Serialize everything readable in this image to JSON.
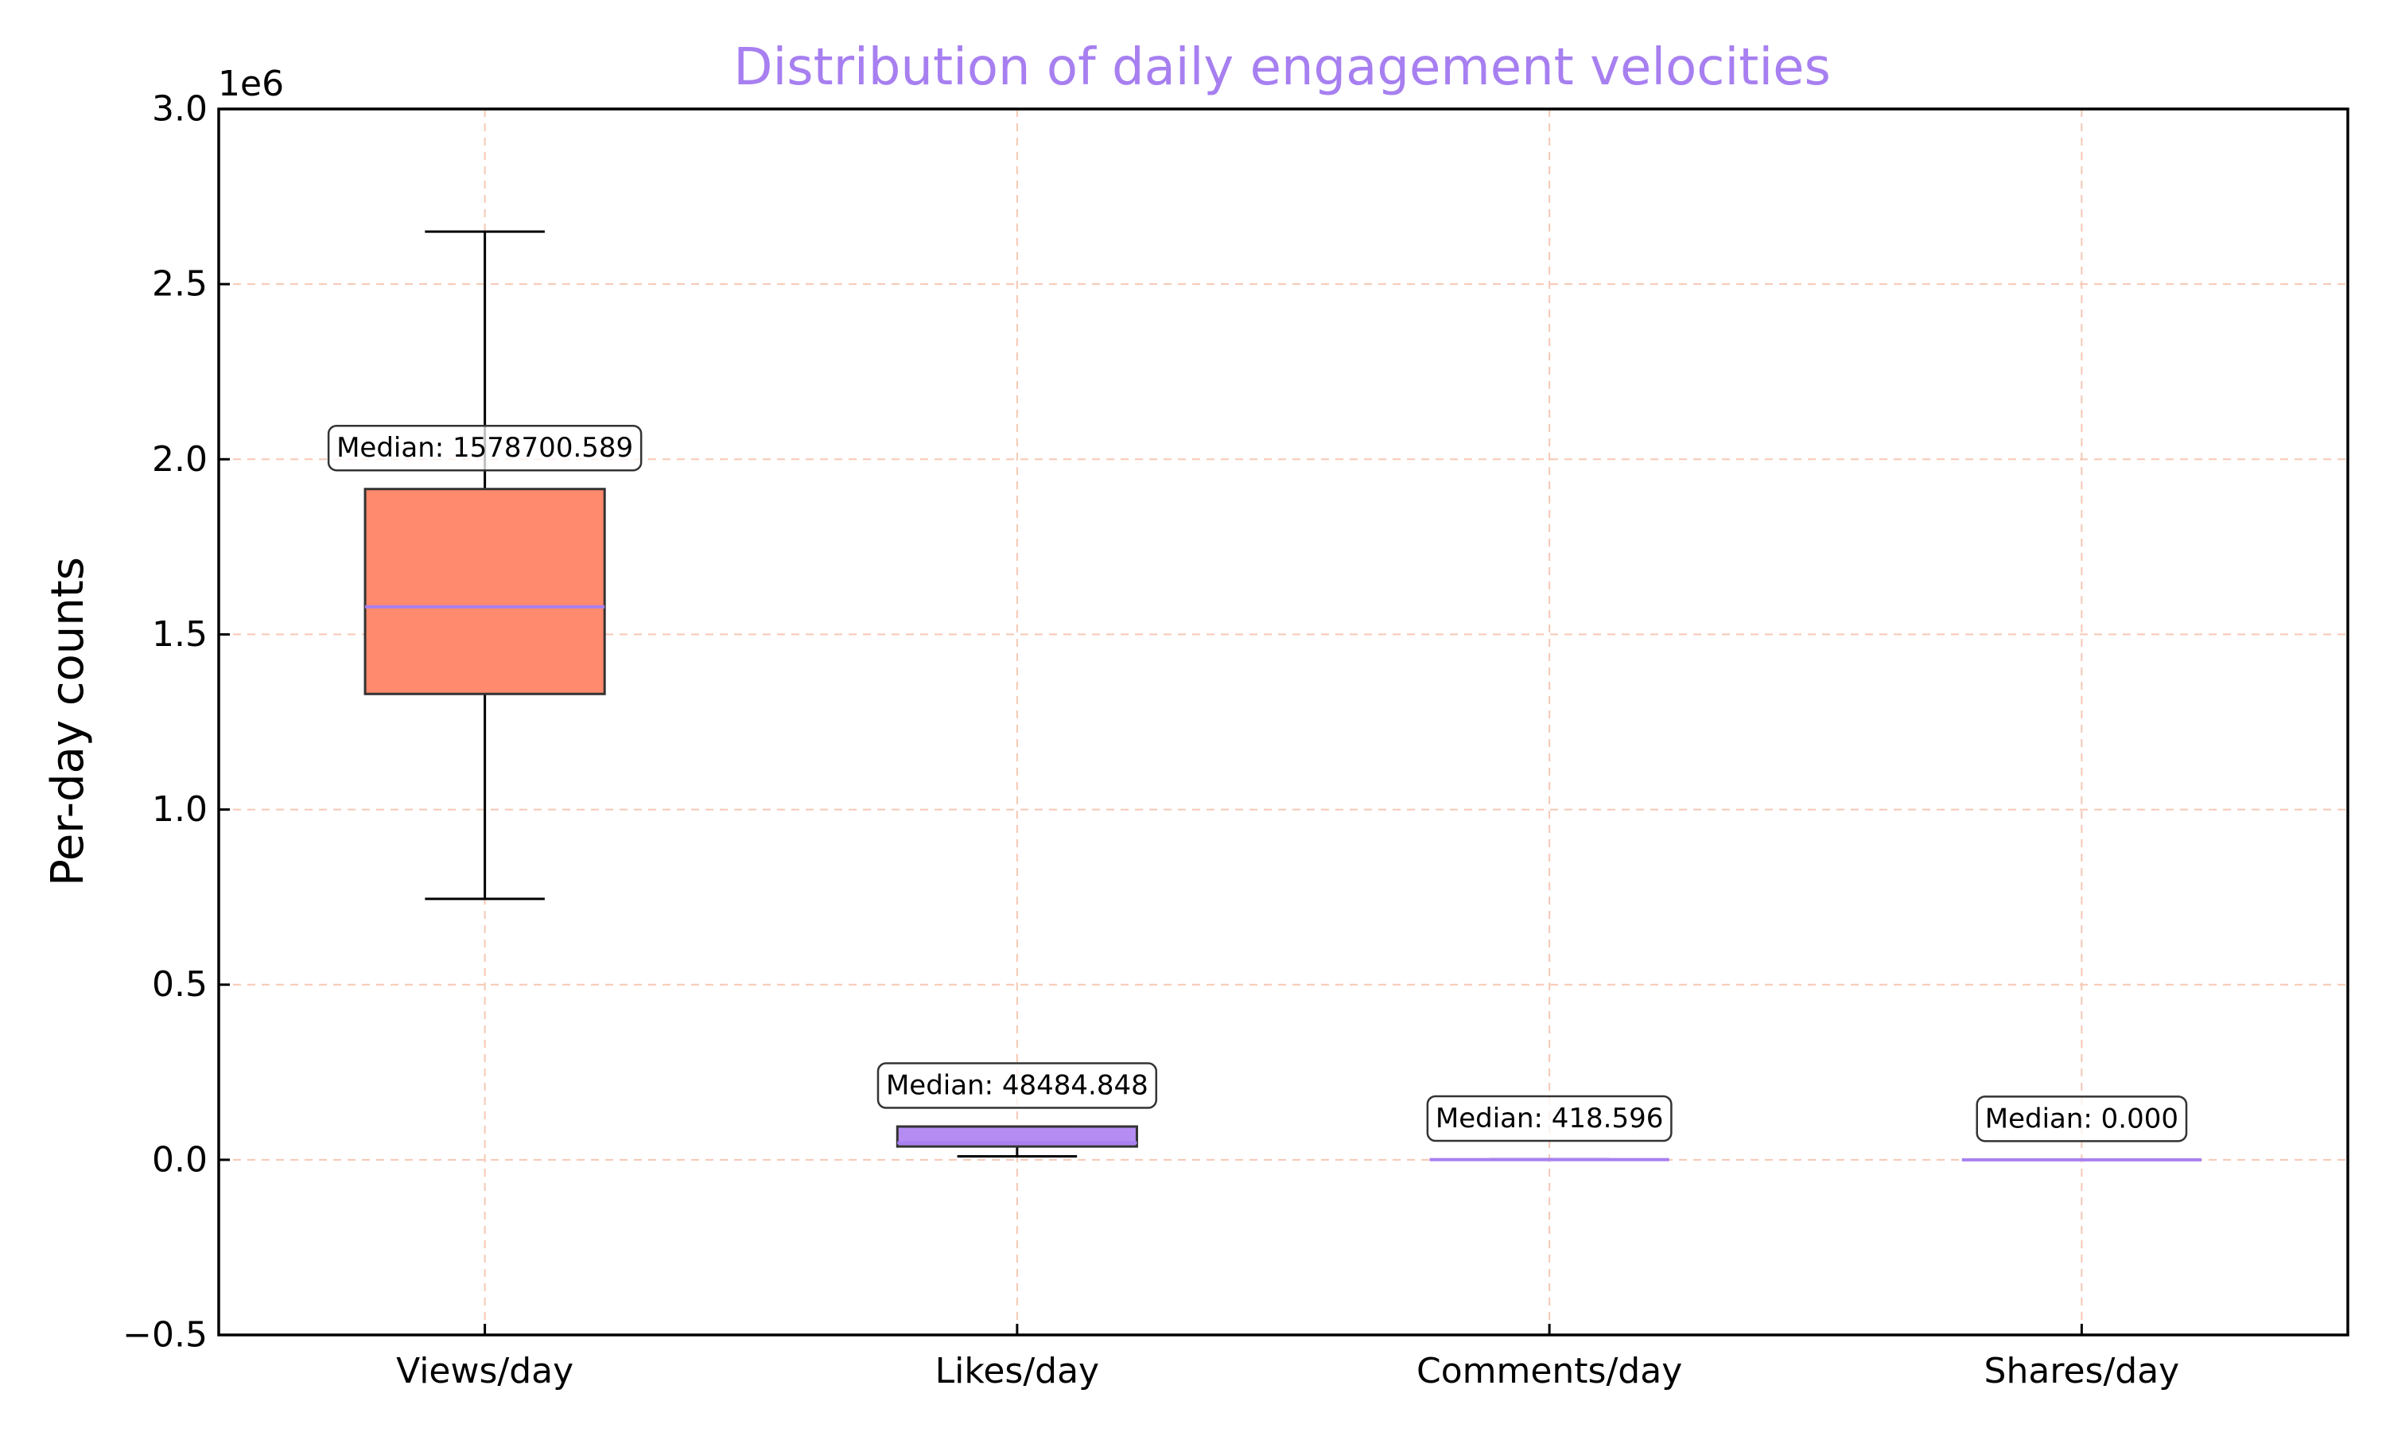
{
  "chart_data": {
    "type": "box",
    "title": "Distribution of daily engagement velocities",
    "xlabel": "",
    "ylabel": "Per-day counts",
    "y_scale_exponent_label": "1e6",
    "ylim": [
      -500000,
      3000000
    ],
    "yticks": [
      -500000,
      0,
      500000,
      1000000,
      1500000,
      2000000,
      2500000,
      3000000
    ],
    "ytick_labels": [
      "−0.5",
      "0.0",
      "0.5",
      "1.0",
      "1.5",
      "2.0",
      "2.5",
      "3.0"
    ],
    "grid": true,
    "categories": [
      "Views/day",
      "Likes/day",
      "Comments/day",
      "Shares/day"
    ],
    "boxes": [
      {
        "whisker_low": 745000,
        "q1": 1330000,
        "median": 1578700.589,
        "q3": 1915000,
        "whisker_high": 2650000,
        "median_label": "Median: 1578700.589",
        "color": "#ff8a6e"
      },
      {
        "whisker_low": 10000,
        "q1": 38000,
        "median": 48484.848,
        "q3": 95000,
        "whisker_high": 95000,
        "median_label": "Median: 48484.848",
        "color": "#b58cf2"
      },
      {
        "whisker_low": 0,
        "q1": 200,
        "median": 418.596,
        "q3": 800,
        "whisker_high": 1500,
        "median_label": "Median: 418.596",
        "color": "#b58cf2"
      },
      {
        "whisker_low": 0,
        "q1": 0,
        "median": 0.0,
        "q3": 0,
        "whisker_high": 0,
        "median_label": "Median: 0.000",
        "color": "#b58cf2"
      }
    ],
    "colors": {
      "title": "#a77ff0",
      "median_line": "#a77ff0",
      "grid": "#f7c8b4"
    }
  }
}
